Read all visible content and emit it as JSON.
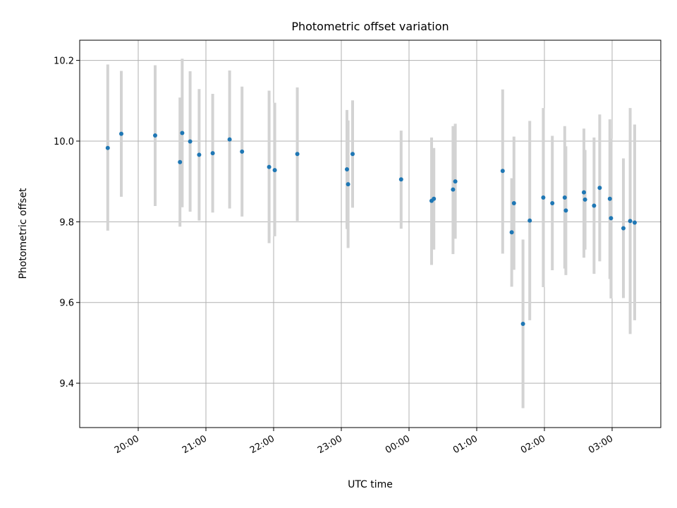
{
  "chart_data": {
    "type": "scatter",
    "title": "Photometric offset variation",
    "xlabel": "UTC time",
    "ylabel": "Photometric offset",
    "x_ticks": [
      "20:00",
      "21:00",
      "22:00",
      "23:00",
      "00:00",
      "01:00",
      "02:00",
      "03:00"
    ],
    "y_ticks": [
      "9.4",
      "9.6",
      "9.8",
      "10.0",
      "10.2"
    ],
    "ylim": [
      9.29,
      10.25
    ],
    "grid": true,
    "marker_color": "#1f77b4",
    "errorbar_color": "#d3d3d3",
    "points": [
      {
        "t": "19:33",
        "y": 9.983,
        "lo": 9.778,
        "hi": 10.19
      },
      {
        "t": "19:45",
        "y": 10.018,
        "lo": 9.862,
        "hi": 10.174
      },
      {
        "t": "20:15",
        "y": 10.014,
        "lo": 9.839,
        "hi": 10.188
      },
      {
        "t": "20:37",
        "y": 9.948,
        "lo": 9.788,
        "hi": 10.108
      },
      {
        "t": "20:39",
        "y": 10.02,
        "lo": 9.836,
        "hi": 10.204
      },
      {
        "t": "20:46",
        "y": 9.999,
        "lo": 9.825,
        "hi": 10.173
      },
      {
        "t": "20:54",
        "y": 9.966,
        "lo": 9.803,
        "hi": 10.129
      },
      {
        "t": "21:06",
        "y": 9.97,
        "lo": 9.823,
        "hi": 10.117
      },
      {
        "t": "21:21",
        "y": 10.004,
        "lo": 9.833,
        "hi": 10.175
      },
      {
        "t": "21:32",
        "y": 9.974,
        "lo": 9.813,
        "hi": 10.135
      },
      {
        "t": "21:56",
        "y": 9.936,
        "lo": 9.747,
        "hi": 10.125
      },
      {
        "t": "22:01",
        "y": 9.928,
        "lo": 9.764,
        "hi": 10.095
      },
      {
        "t": "22:21",
        "y": 9.968,
        "lo": 9.802,
        "hi": 10.133
      },
      {
        "t": "23:05",
        "y": 9.93,
        "lo": 9.782,
        "hi": 10.077
      },
      {
        "t": "23:06",
        "y": 9.893,
        "lo": 9.735,
        "hi": 10.051
      },
      {
        "t": "23:10",
        "y": 9.968,
        "lo": 9.835,
        "hi": 10.101
      },
      {
        "t": "23:53",
        "y": 9.905,
        "lo": 9.783,
        "hi": 10.026
      },
      {
        "t": "00:20",
        "y": 9.852,
        "lo": 9.693,
        "hi": 10.009
      },
      {
        "t": "00:22",
        "y": 9.857,
        "lo": 9.731,
        "hi": 9.983
      },
      {
        "t": "00:39",
        "y": 9.88,
        "lo": 9.72,
        "hi": 10.037
      },
      {
        "t": "00:41",
        "y": 9.9,
        "lo": 9.758,
        "hi": 10.043
      },
      {
        "t": "01:23",
        "y": 9.926,
        "lo": 9.721,
        "hi": 10.128
      },
      {
        "t": "01:31",
        "y": 9.774,
        "lo": 9.639,
        "hi": 9.908
      },
      {
        "t": "01:33",
        "y": 9.846,
        "lo": 9.681,
        "hi": 10.011
      },
      {
        "t": "01:41",
        "y": 9.547,
        "lo": 9.338,
        "hi": 9.756
      },
      {
        "t": "01:47",
        "y": 9.803,
        "lo": 9.556,
        "hi": 10.05
      },
      {
        "t": "01:59",
        "y": 9.86,
        "lo": 9.638,
        "hi": 10.082
      },
      {
        "t": "02:07",
        "y": 9.846,
        "lo": 9.68,
        "hi": 10.013
      },
      {
        "t": "02:18",
        "y": 9.86,
        "lo": 9.684,
        "hi": 10.037
      },
      {
        "t": "02:19",
        "y": 9.828,
        "lo": 9.668,
        "hi": 9.987
      },
      {
        "t": "02:35",
        "y": 9.873,
        "lo": 9.711,
        "hi": 10.031
      },
      {
        "t": "02:36",
        "y": 9.855,
        "lo": 9.731,
        "hi": 9.978
      },
      {
        "t": "02:44",
        "y": 9.84,
        "lo": 9.671,
        "hi": 10.009
      },
      {
        "t": "02:49",
        "y": 9.884,
        "lo": 9.702,
        "hi": 10.066
      },
      {
        "t": "02:58",
        "y": 9.857,
        "lo": 9.658,
        "hi": 10.054
      },
      {
        "t": "02:59",
        "y": 9.809,
        "lo": 9.61,
        "hi": 10.006
      },
      {
        "t": "03:10",
        "y": 9.784,
        "lo": 9.611,
        "hi": 9.957
      },
      {
        "t": "03:16",
        "y": 9.802,
        "lo": 9.522,
        "hi": 10.082
      },
      {
        "t": "03:20",
        "y": 9.798,
        "lo": 9.556,
        "hi": 10.041
      }
    ]
  }
}
